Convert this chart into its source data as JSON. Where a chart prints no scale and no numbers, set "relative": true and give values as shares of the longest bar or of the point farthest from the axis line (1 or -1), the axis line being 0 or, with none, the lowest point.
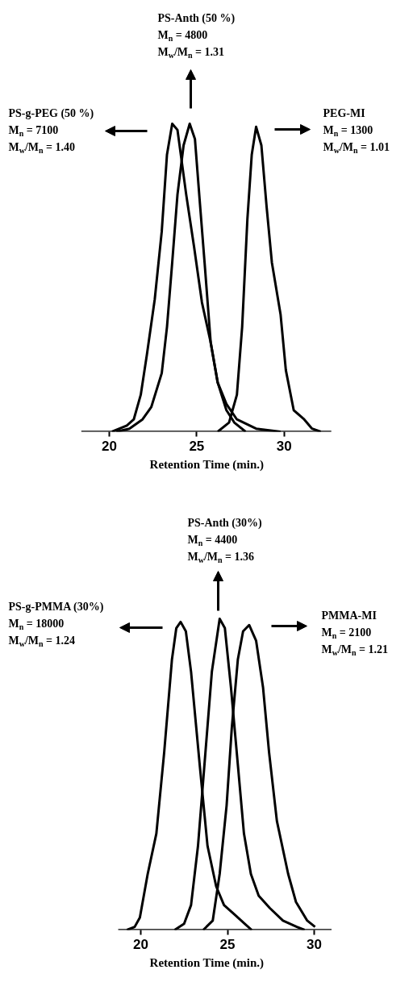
{
  "chart_data": [
    {
      "type": "line",
      "relative": true,
      "xlabel": "Retention Time (min.)",
      "xlim": [
        18.4,
        32.7
      ],
      "xticks": [
        20,
        25,
        30
      ],
      "annotations": [
        "PS-Anth (50 %)\nM$_{n}$ = 4800\nM$_{w}$/M$_{n}$ = 1.31",
        "PS-g-PEG (50 %)\nM$_{n}$ = 7100\nM$_{w}$/M$_{n}$ = 1.40",
        "PEG-MI\nM$_{n}$ = 1300\nM$_{w}$/M$_{n}$ = 1.01"
      ],
      "series": [
        {
          "color": "#000000",
          "x": [
            20.15,
            21.0,
            21.4,
            21.8,
            22.15,
            22.6,
            23.0,
            23.3,
            23.6,
            23.9,
            24.4,
            24.85,
            25.3,
            25.8,
            26.2,
            26.7,
            27.15,
            27.8
          ],
          "values": [
            0,
            0.02,
            0.04,
            0.12,
            0.25,
            0.43,
            0.65,
            0.9,
            1.0,
            0.98,
            0.77,
            0.6,
            0.42,
            0.29,
            0.16,
            0.07,
            0.03,
            0
          ]
        },
        {
          "color": "#000000",
          "x": [
            20.4,
            21.15,
            21.9,
            22.4,
            23.0,
            23.3,
            23.6,
            23.9,
            24.25,
            24.6,
            24.9,
            25.2,
            25.45,
            25.8,
            26.2,
            26.7,
            27.3,
            28.4,
            29.8
          ],
          "values": [
            0,
            0.01,
            0.04,
            0.08,
            0.19,
            0.34,
            0.55,
            0.77,
            0.93,
            1.0,
            0.95,
            0.73,
            0.55,
            0.29,
            0.16,
            0.09,
            0.04,
            0.01,
            0
          ]
        },
        {
          "color": "#000000",
          "x": [
            26.2,
            26.85,
            27.3,
            27.6,
            27.9,
            28.15,
            28.4,
            28.7,
            29.0,
            29.3,
            29.8,
            30.1,
            30.55,
            31.15,
            31.6,
            32.1
          ],
          "values": [
            0,
            0.03,
            0.12,
            0.34,
            0.69,
            0.9,
            0.99,
            0.93,
            0.73,
            0.55,
            0.38,
            0.2,
            0.07,
            0.04,
            0.01,
            0
          ]
        }
      ]
    },
    {
      "type": "line",
      "relative": true,
      "xlabel": "Retention Time (min.)",
      "xlim": [
        18.7,
        31.0
      ],
      "xticks": [
        20,
        25,
        30
      ],
      "annotations": [
        "PS-Anth (30%)\nM$_{n}$ = 4400\nM$_{w}$/M$_{n}$ = 1.36",
        "PS-g-PMMA (30%)\nM$_{n}$ = 18000\nM$_{w}$/M$_{n}$ = 1.24",
        "PMMA-MI\nM$_{n}$ = 2100\nM$_{w}$/M$_{n}$ = 1.21"
      ],
      "series": [
        {
          "color": "#000000",
          "x": [
            19.2,
            19.65,
            19.95,
            20.4,
            20.9,
            21.35,
            21.8,
            22.05,
            22.3,
            22.6,
            22.9,
            23.4,
            23.85,
            24.35,
            24.8,
            25.4,
            26.0,
            26.4
          ],
          "values": [
            0,
            0.01,
            0.04,
            0.18,
            0.31,
            0.57,
            0.87,
            0.97,
            0.99,
            0.96,
            0.83,
            0.53,
            0.27,
            0.14,
            0.08,
            0.05,
            0.02,
            0
          ]
        },
        {
          "color": "#000000",
          "x": [
            21.95,
            22.5,
            22.9,
            23.3,
            23.6,
            24.1,
            24.55,
            24.85,
            25.2,
            25.6,
            25.95,
            26.35,
            26.8,
            27.45,
            28.2,
            29.0,
            29.45
          ],
          "values": [
            0,
            0.02,
            0.08,
            0.27,
            0.48,
            0.83,
            1.0,
            0.97,
            0.78,
            0.53,
            0.31,
            0.18,
            0.11,
            0.07,
            0.03,
            0.01,
            0
          ]
        },
        {
          "color": "#000000",
          "x": [
            23.6,
            24.15,
            24.55,
            24.95,
            25.25,
            25.6,
            25.9,
            26.25,
            26.65,
            27.05,
            27.4,
            27.85,
            28.5,
            28.95,
            29.6,
            30.05
          ],
          "values": [
            0,
            0.03,
            0.18,
            0.4,
            0.65,
            0.87,
            0.96,
            0.98,
            0.93,
            0.78,
            0.57,
            0.35,
            0.18,
            0.09,
            0.03,
            0.01
          ]
        }
      ]
    }
  ]
}
